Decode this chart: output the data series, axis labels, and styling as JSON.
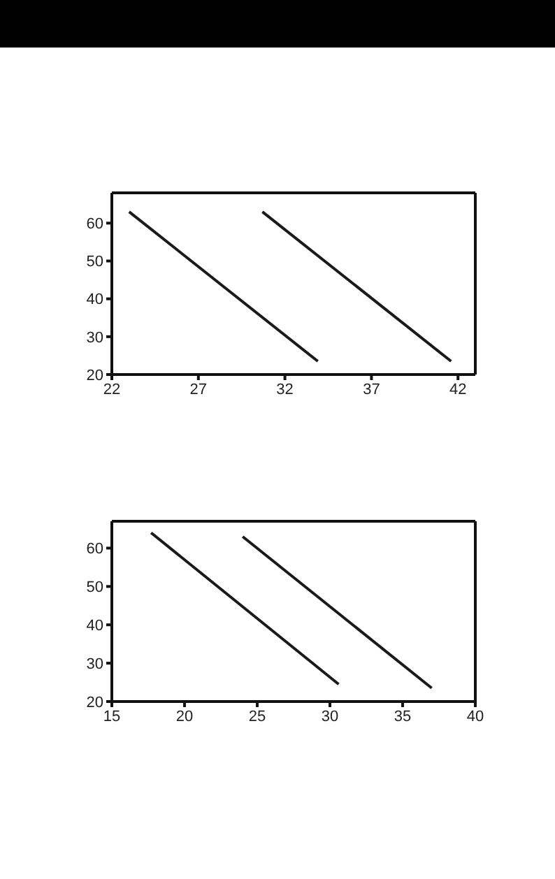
{
  "chart_data": [
    {
      "type": "line",
      "xlim": [
        22,
        43
      ],
      "xticks": [
        22,
        27,
        32,
        37,
        42
      ],
      "ylim": [
        20,
        68
      ],
      "yticks": [
        20,
        30,
        40,
        50,
        60
      ],
      "grid": false,
      "marker": "none",
      "line_style": "solid",
      "series": [
        {
          "color": "#1a1a1a",
          "x": [
            23,
            33.9
          ],
          "values": [
            63,
            23.5
          ]
        },
        {
          "color": "#1a1a1a",
          "x": [
            30.7,
            41.6
          ],
          "values": [
            63,
            23.5
          ]
        }
      ]
    },
    {
      "type": "line",
      "xlim": [
        15,
        40
      ],
      "xticks": [
        15,
        20,
        25,
        30,
        35,
        40
      ],
      "ylim": [
        20,
        67
      ],
      "yticks": [
        20,
        30,
        40,
        50,
        60
      ],
      "grid": false,
      "marker": "none",
      "line_style": "solid",
      "series": [
        {
          "color": "#1a1a1a",
          "x": [
            17.7,
            30.6
          ],
          "values": [
            64,
            24.5
          ]
        },
        {
          "color": "#1a1a1a",
          "x": [
            24,
            37
          ],
          "values": [
            63,
            23.5
          ]
        }
      ]
    }
  ]
}
